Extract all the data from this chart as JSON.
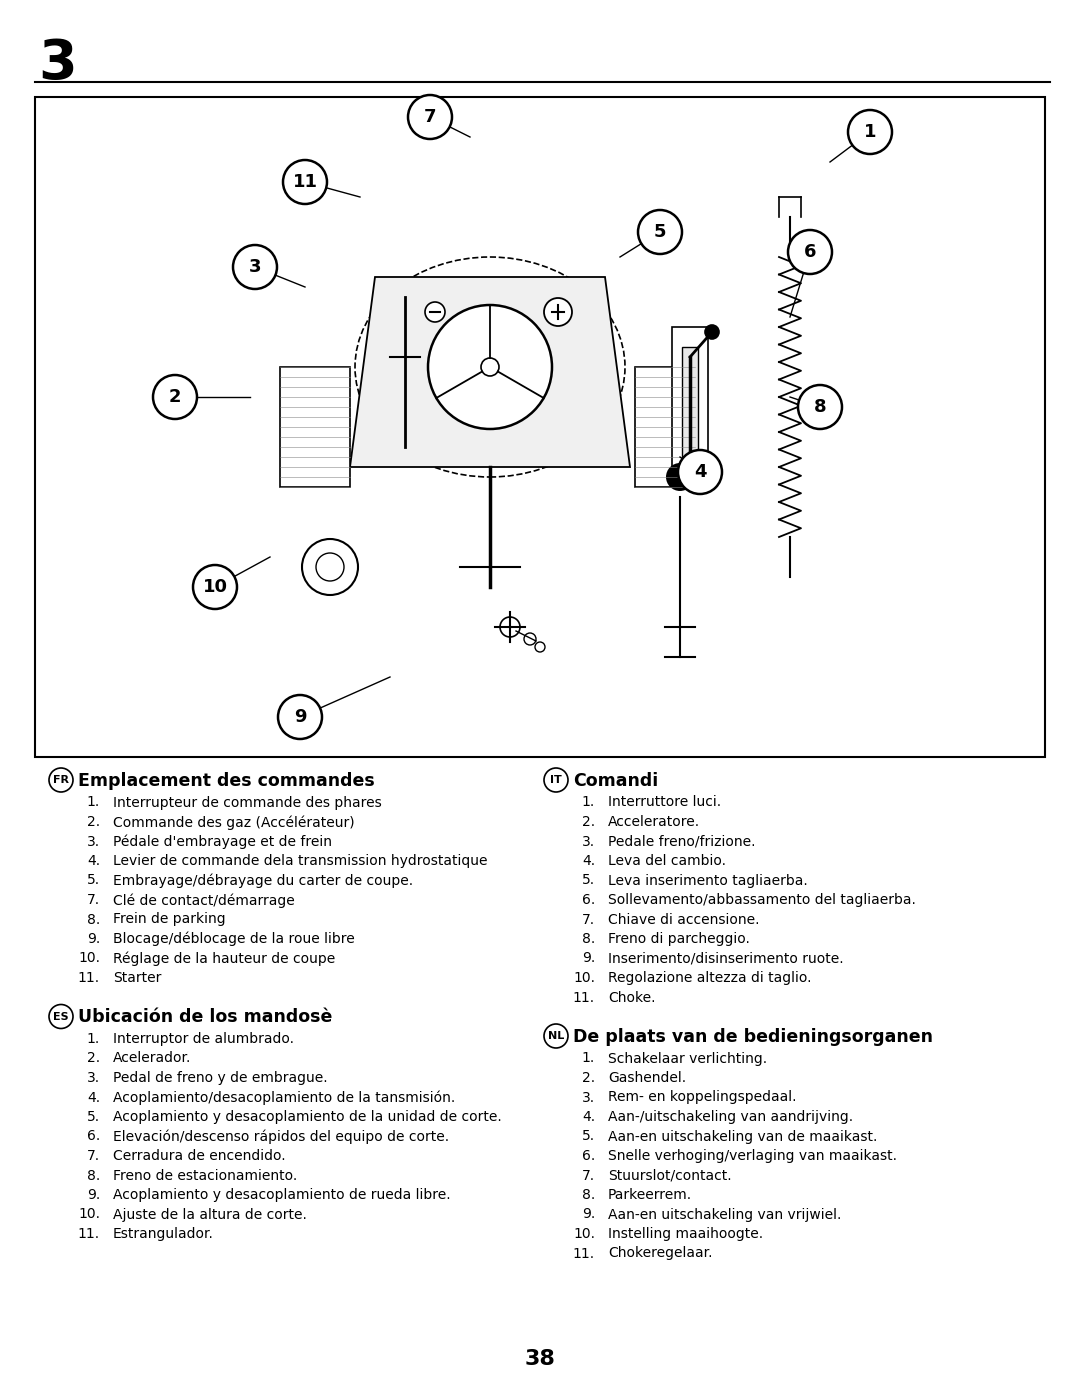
{
  "page_number": "3",
  "page_num_bottom": "38",
  "background_color": "#ffffff",
  "text_color": "#000000",
  "fr_title": "Emplacement des commandes",
  "fr_items": [
    [
      1,
      "Interrupteur de commande des phares"
    ],
    [
      2,
      "Commande des gaz (Accélérateur)"
    ],
    [
      3,
      "Pédale d'embrayage et de frein"
    ],
    [
      4,
      "Levier de commande dela transmission hydrostatique"
    ],
    [
      5,
      "Embrayage/débrayage du carter de coupe."
    ],
    [
      7,
      "Clé de contact/démarrage"
    ],
    [
      8,
      "Frein de parking"
    ],
    [
      9,
      "Blocage/déblocage de la roue libre"
    ],
    [
      10,
      "Réglage de la hauteur de coupe"
    ],
    [
      11,
      "Starter"
    ]
  ],
  "es_title": "Ubicación de los mandosè",
  "es_items": [
    [
      1,
      "Interruptor de alumbrado."
    ],
    [
      2,
      "Acelerador."
    ],
    [
      3,
      "Pedal de freno y de embrague."
    ],
    [
      4,
      "Acoplamiento/desacoplamiento de la tansmisión."
    ],
    [
      5,
      "Acoplamiento y desacoplamiento de la unidad de corte."
    ],
    [
      6,
      "Elevación/descenso rápidos del equipo de corte."
    ],
    [
      7,
      "Cerradura de encendido."
    ],
    [
      8,
      "Freno de estacionamiento."
    ],
    [
      9,
      "Acoplamiento y desacoplamiento de rueda libre."
    ],
    [
      10,
      "Ajuste de la altura de corte."
    ],
    [
      11,
      "Estrangulador."
    ]
  ],
  "it_title": "Comandi",
  "it_items": [
    [
      1,
      "Interruttore luci."
    ],
    [
      2,
      "Acceleratore."
    ],
    [
      3,
      "Pedale freno/frizione."
    ],
    [
      4,
      "Leva del cambio."
    ],
    [
      5,
      "Leva inserimento tagliaerba."
    ],
    [
      6,
      "Sollevamento/abbassamento del tagliaerba."
    ],
    [
      7,
      "Chiave di accensione."
    ],
    [
      8,
      "Freno di parcheggio."
    ],
    [
      9,
      "Inserimento/disinserimento ruote."
    ],
    [
      10,
      "Regolazione altezza di taglio."
    ],
    [
      11,
      "Choke."
    ]
  ],
  "nl_title": "De plaats van de bedieningsorganen",
  "nl_items": [
    [
      1,
      "Schakelaar verlichting."
    ],
    [
      2,
      "Gashendel."
    ],
    [
      3,
      "Rem- en koppelingspedaal."
    ],
    [
      4,
      "Aan-/uitschakeling van aandrijving."
    ],
    [
      5,
      "Aan-en uitschakeling van de maaikast."
    ],
    [
      6,
      "Snelle verhoging/verlaging van maaikast."
    ],
    [
      7,
      "Stuurslot/contact."
    ],
    [
      8,
      "Parkeerrem."
    ],
    [
      9,
      "Aan-en uitschakeling van vrijwiel."
    ],
    [
      10,
      "Instelling maaihoogte."
    ],
    [
      11,
      "Chokeregelaar."
    ]
  ]
}
